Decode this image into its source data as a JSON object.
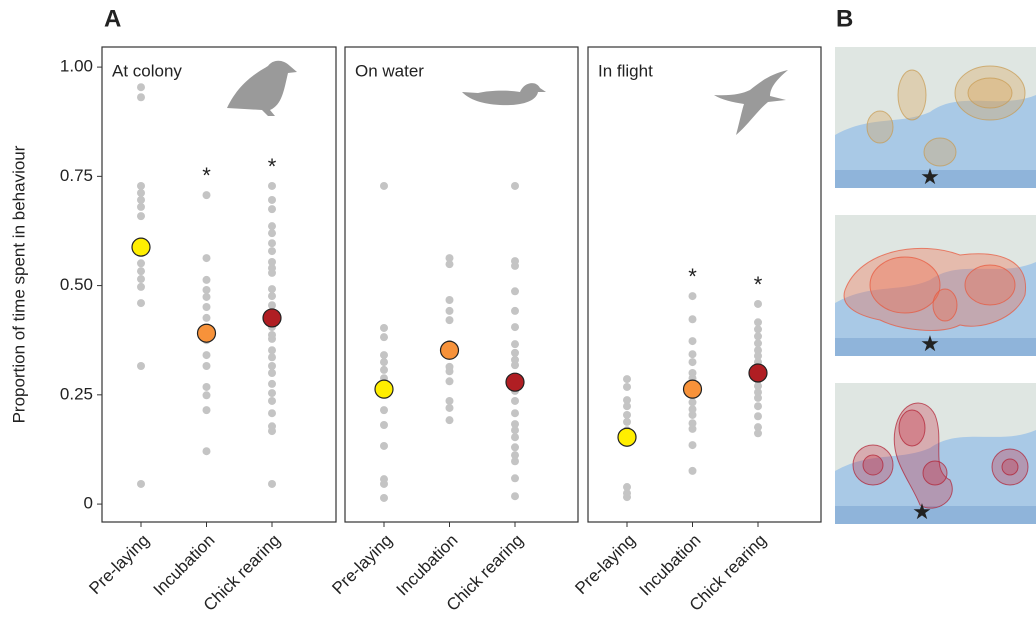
{
  "panel_labels": [
    "A",
    "B"
  ],
  "chart_data": [
    {
      "type": "strip",
      "title": "At colony",
      "ylabel": "Proportion of time spent in behaviour",
      "categories": [
        "Pre-laying",
        "Incubation",
        "Chick rearing"
      ],
      "ylim": [
        -0.041,
        1.046
      ],
      "yticks": [
        0,
        {
          "value": 0.25,
          "label": "0.25"
        },
        {
          "value": 0.5,
          "label": "0.50"
        },
        {
          "value": 0.75,
          "label": "0.75"
        },
        {
          "value": 1,
          "label": "1.00"
        }
      ],
      "individual_color": "#c4c4c4",
      "individual_values": [
        [
          0.954,
          0.931,
          0.728,
          0.712,
          0.696,
          0.68,
          0.659,
          0.595,
          0.579,
          0.551,
          0.533,
          0.515,
          0.497,
          0.46,
          0.316,
          0.046
        ],
        [
          0.707,
          0.563,
          0.513,
          0.49,
          0.474,
          0.451,
          0.426,
          0.398,
          0.375,
          0.341,
          0.316,
          0.268,
          0.249,
          0.215,
          0.121
        ],
        [
          0.728,
          0.696,
          0.675,
          0.636,
          0.62,
          0.597,
          0.579,
          0.554,
          0.54,
          0.529,
          0.492,
          0.476,
          0.455,
          0.432,
          0.405,
          0.387,
          0.378,
          0.352,
          0.336,
          0.316,
          0.3,
          0.275,
          0.254,
          0.236,
          0.208,
          0.178,
          0.167,
          0.046
        ]
      ],
      "mean_values": [
        0.588,
        0.391,
        0.426
      ],
      "mean_colors": [
        "#ffee00",
        "#f7923a",
        "#b01e23"
      ],
      "annotations": [
        {
          "label": "*",
          "category": "Incubation"
        },
        {
          "label": "*",
          "category": "Chick rearing"
        }
      ]
    },
    {
      "type": "strip",
      "title": "On water",
      "categories": [
        "Pre-laying",
        "Incubation",
        "Chick rearing"
      ],
      "ylim": [
        -0.041,
        1.046
      ],
      "individual_color": "#c4c4c4",
      "individual_values": [
        [
          0.728,
          0.403,
          0.382,
          0.341,
          0.325,
          0.307,
          0.288,
          0.275,
          0.215,
          0.181,
          0.133,
          0.057,
          0.046,
          0.014
        ],
        [
          0.563,
          0.549,
          0.467,
          0.442,
          0.421,
          0.366,
          0.314,
          0.304,
          0.281,
          0.236,
          0.22,
          0.192
        ],
        [
          0.728,
          0.556,
          0.545,
          0.487,
          0.442,
          0.405,
          0.366,
          0.346,
          0.33,
          0.318,
          0.281,
          0.259,
          0.236,
          0.208,
          0.183,
          0.169,
          0.153,
          0.13,
          0.112,
          0.098,
          0.059,
          0.018
        ]
      ],
      "mean_values": [
        0.263,
        0.352,
        0.279
      ],
      "mean_colors": [
        "#ffee00",
        "#f7923a",
        "#b01e23"
      ]
    },
    {
      "type": "strip",
      "title": "In flight",
      "categories": [
        "Pre-laying",
        "Incubation",
        "Chick rearing"
      ],
      "ylim": [
        -0.041,
        1.046
      ],
      "individual_color": "#c4c4c4",
      "individual_values": [
        [
          0.286,
          0.268,
          0.238,
          0.224,
          0.204,
          0.188,
          0.169,
          0.039,
          0.025,
          0.016
        ],
        [
          0.476,
          0.423,
          0.373,
          0.343,
          0.325,
          0.3,
          0.288,
          0.272,
          0.249,
          0.233,
          0.217,
          0.204,
          0.185,
          0.172,
          0.135,
          0.076
        ],
        [
          0.458,
          0.416,
          0.4,
          0.384,
          0.368,
          0.352,
          0.339,
          0.325,
          0.311,
          0.297,
          0.284,
          0.27,
          0.256,
          0.243,
          0.224,
          0.201,
          0.176,
          0.162
        ]
      ],
      "mean_values": [
        0.153,
        0.263,
        0.3
      ],
      "mean_colors": [
        "#ffee00",
        "#f7923a",
        "#b01e23"
      ],
      "annotations": [
        {
          "label": "*",
          "category": "Incubation"
        },
        {
          "label": "*",
          "category": "Chick rearing"
        }
      ]
    }
  ]
}
